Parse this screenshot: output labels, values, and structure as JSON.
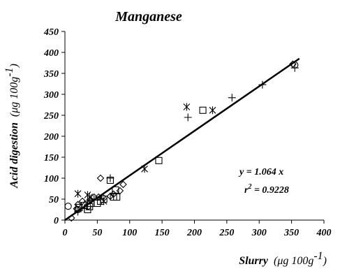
{
  "chart_data": {
    "type": "scatter",
    "title": "Manganese",
    "xlabel": "Slurry",
    "xlabel_unit": "(μg 100g",
    "xlabel_unit_exp": "-1",
    "xlabel_unit_close": ")",
    "ylabel": "Acid digestion",
    "ylabel_unit": "(μg 100g",
    "ylabel_unit_exp": "-1",
    "ylabel_unit_close": ")",
    "xlim": [
      0,
      400
    ],
    "ylim": [
      0,
      450
    ],
    "xticks": [
      0,
      50,
      100,
      150,
      200,
      250,
      300,
      350,
      400
    ],
    "yticks": [
      0,
      50,
      100,
      150,
      200,
      250,
      300,
      350,
      400,
      450
    ],
    "grid": false,
    "legend": "none",
    "series": [
      {
        "marker": "diamond",
        "points": [
          [
            10,
            5
          ],
          [
            18,
            27
          ],
          [
            20,
            37
          ],
          [
            27,
            45
          ],
          [
            40,
            47
          ],
          [
            45,
            55
          ],
          [
            52,
            55
          ],
          [
            55,
            100
          ],
          [
            58,
            55
          ],
          [
            70,
            57
          ],
          [
            75,
            62
          ],
          [
            85,
            70
          ],
          [
            90,
            85
          ],
          [
            352,
            372
          ]
        ]
      },
      {
        "marker": "square",
        "points": [
          [
            22,
            30
          ],
          [
            30,
            35
          ],
          [
            35,
            25
          ],
          [
            38,
            32
          ],
          [
            40,
            40
          ],
          [
            50,
            40
          ],
          [
            55,
            45
          ],
          [
            60,
            50
          ],
          [
            70,
            95
          ],
          [
            75,
            55
          ],
          [
            78,
            72
          ],
          [
            80,
            55
          ],
          [
            145,
            142
          ],
          [
            213,
            262
          ]
        ]
      },
      {
        "marker": "plus",
        "points": [
          [
            20,
            20
          ],
          [
            30,
            28
          ],
          [
            35,
            45
          ],
          [
            45,
            50
          ],
          [
            55,
            50
          ],
          [
            70,
            100
          ],
          [
            190,
            245
          ],
          [
            258,
            292
          ],
          [
            305,
            323
          ],
          [
            355,
            363
          ]
        ]
      },
      {
        "marker": "asterisk",
        "points": [
          [
            20,
            63
          ],
          [
            35,
            60
          ],
          [
            38,
            55
          ],
          [
            60,
            45
          ],
          [
            123,
            122
          ],
          [
            188,
            270
          ],
          [
            228,
            262
          ]
        ]
      },
      {
        "marker": "circle",
        "points": [
          [
            5,
            33
          ],
          [
            20,
            25
          ],
          [
            35,
            33
          ],
          [
            355,
            370
          ]
        ]
      }
    ],
    "regression_line": {
      "slope": 1.064,
      "x_range": [
        0,
        362
      ]
    },
    "annotations": [
      {
        "text": "y = 1.064 x"
      },
      {
        "text_prefix": "r",
        "text_sup": "2",
        "text_suffix": " = 0.9228"
      }
    ]
  }
}
